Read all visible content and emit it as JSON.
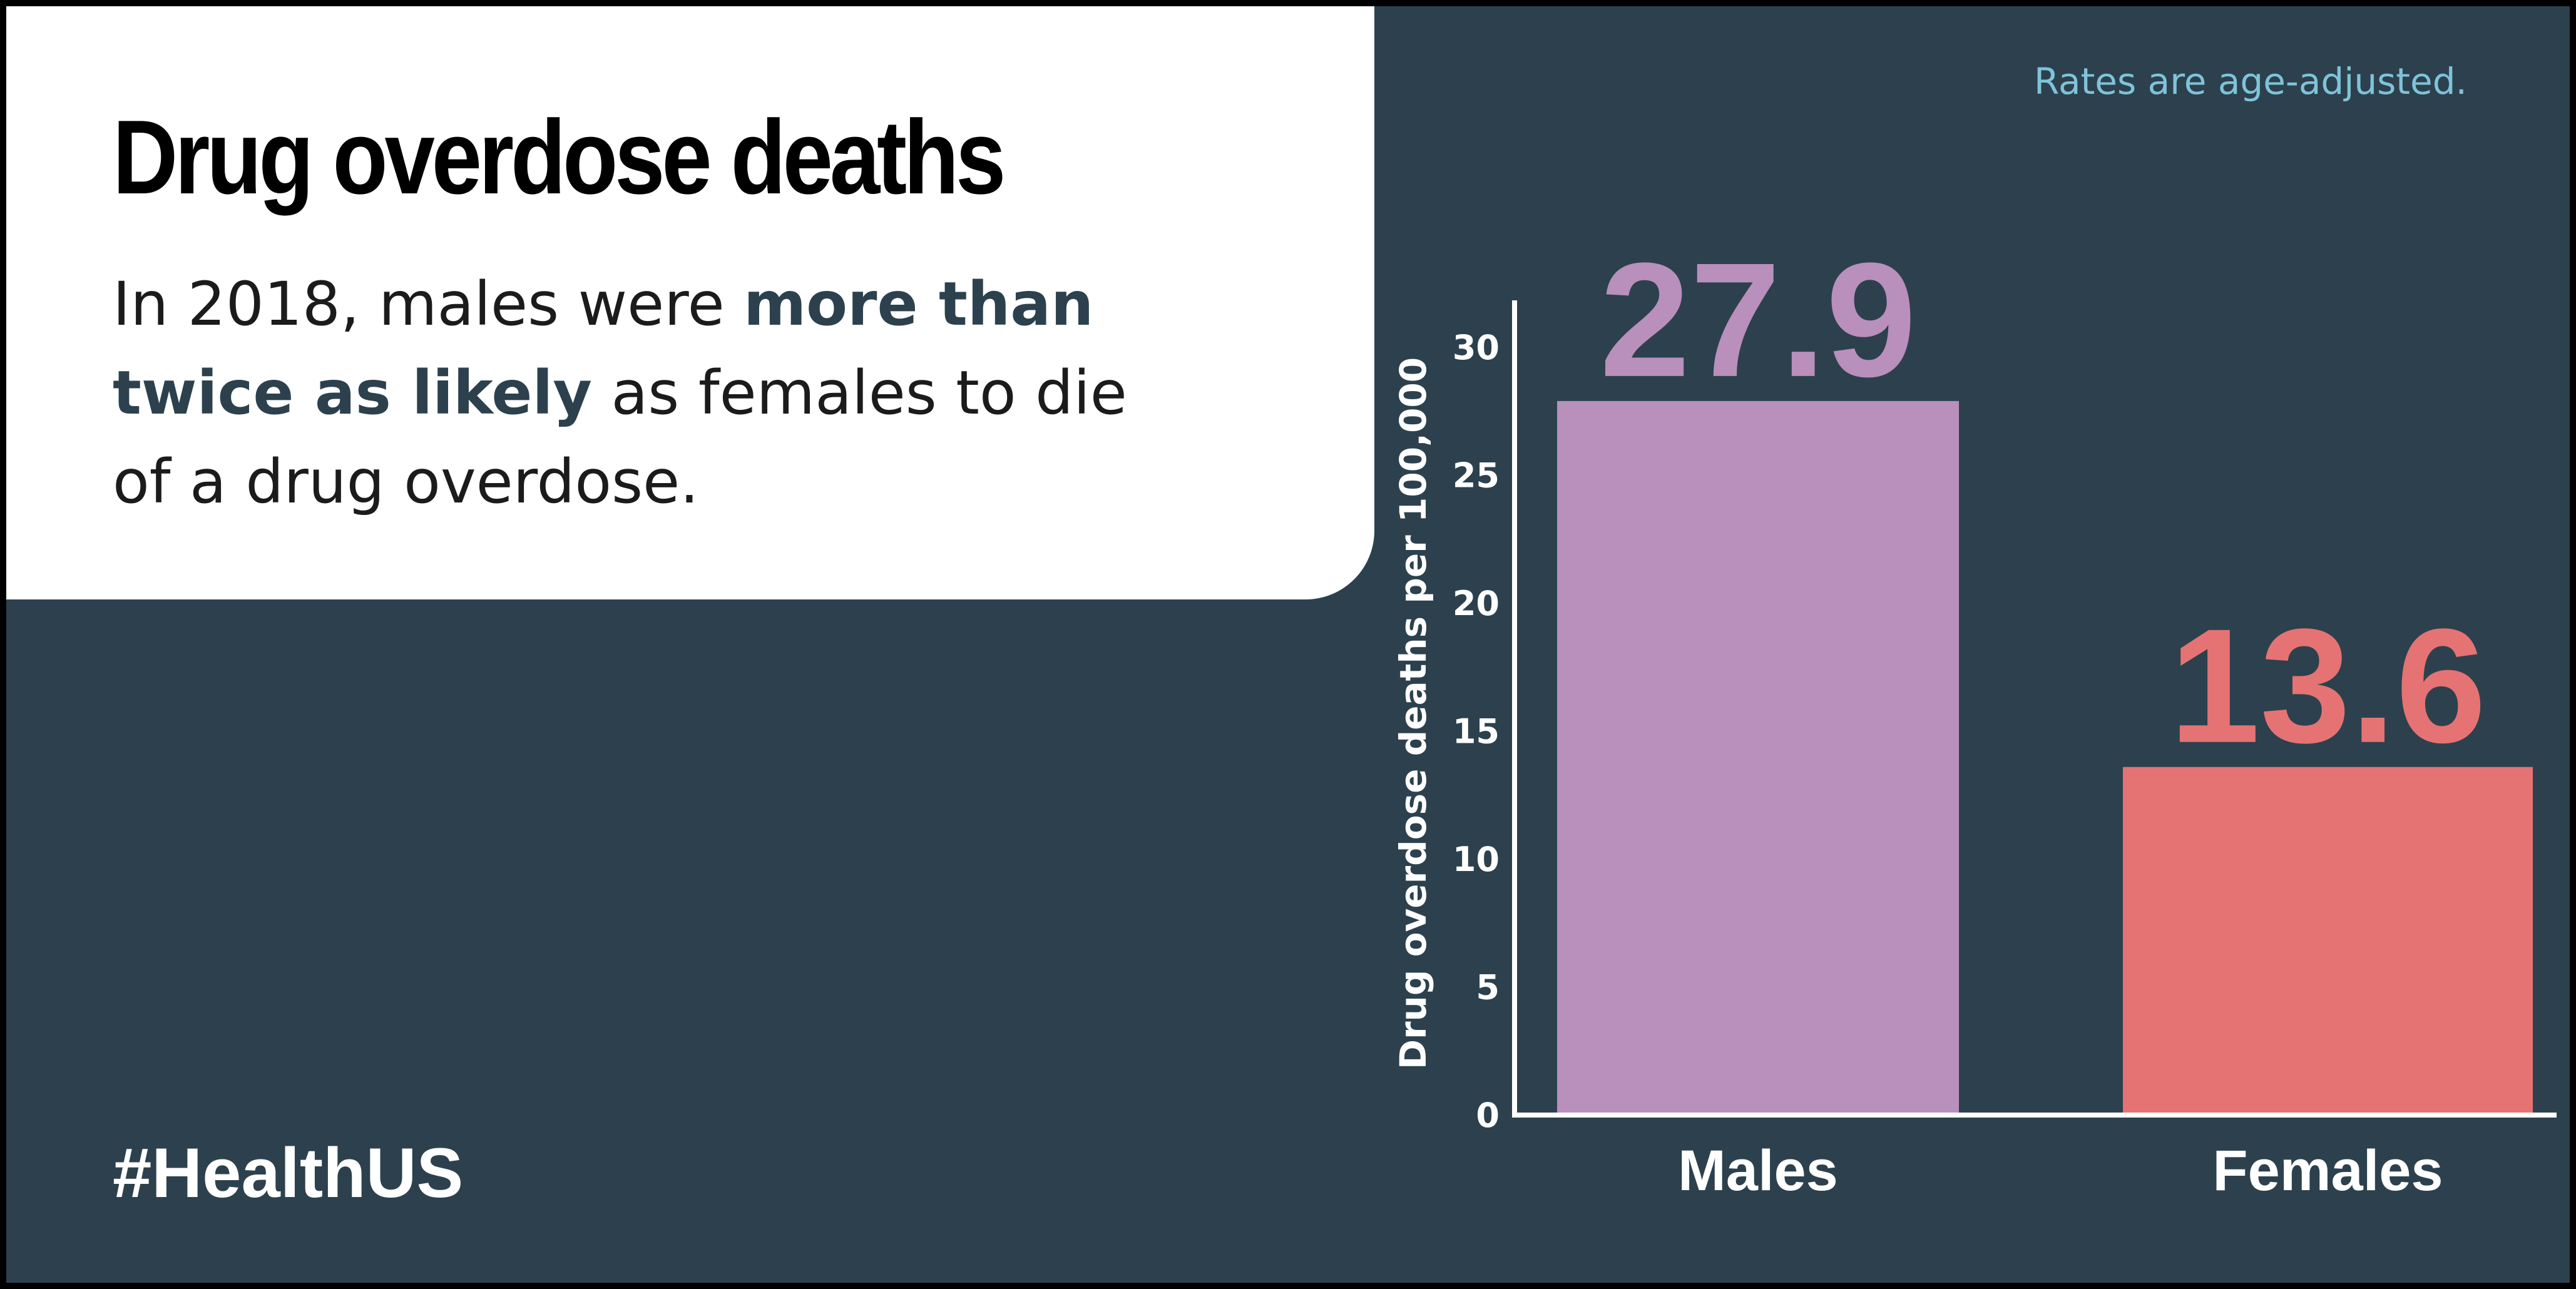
{
  "header": {
    "title": "Drug overdose deaths",
    "desc_part1": "In 2018, males were ",
    "desc_emphasis": "more than twice as likely",
    "desc_part2": " as females to die of a drug overdose."
  },
  "footer": {
    "hashtag": "#HealthUS"
  },
  "note": "Rates are age-adjusted.",
  "colors": {
    "background": "#2c414d",
    "card": "#ffffff",
    "males": "#b98fbb",
    "females": "#e57373",
    "note": "#7fc3d9",
    "axis": "#ffffff"
  },
  "chart_data": {
    "type": "bar",
    "categories": [
      "Males",
      "Females"
    ],
    "values": [
      27.9,
      13.6
    ],
    "value_labels": [
      "27.9",
      "13.6"
    ],
    "bar_colors": [
      "#b98fbb",
      "#e57373"
    ],
    "ylabel": "Drug overdose deaths per 100,000",
    "xlabel": "",
    "ylim": [
      0,
      30
    ],
    "yticks": [
      0,
      5,
      10,
      15,
      20,
      25,
      30
    ],
    "grid": false
  }
}
